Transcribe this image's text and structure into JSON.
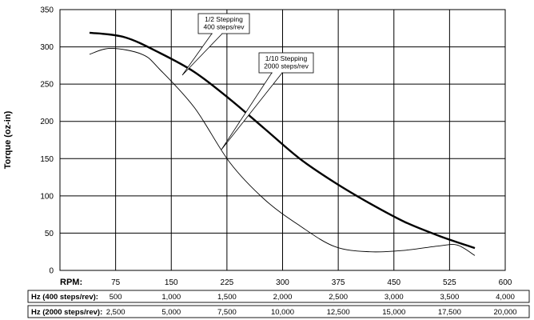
{
  "chart_data": {
    "type": "line",
    "title": "",
    "ylabel": "Torque (oz-in)",
    "xlabel": "RPM:",
    "ylim": [
      0,
      350
    ],
    "y_ticks": [
      "0",
      "50",
      "100",
      "150",
      "200",
      "250",
      "300",
      "350"
    ],
    "xlim": [
      0,
      600
    ],
    "x_ticks": [
      "75",
      "150",
      "225",
      "300",
      "375",
      "450",
      "525",
      "600"
    ],
    "grid": true,
    "series": [
      {
        "name": "1/2 Stepping 400 steps/rev",
        "color": "#000000",
        "weight": "bold",
        "x": [
          0,
          50,
          100,
          150,
          200,
          250,
          300,
          350,
          400,
          450,
          500,
          550
        ],
        "y": [
          319,
          313,
          292,
          266,
          230,
          190,
          150,
          118,
          90,
          65,
          46,
          30
        ]
      },
      {
        "name": "1/10 Stepping 2000 steps/rev",
        "color": "#000000",
        "weight": "thin",
        "x": [
          0,
          30,
          75,
          100,
          150,
          200,
          250,
          300,
          350,
          400,
          450,
          500,
          525,
          550
        ],
        "y": [
          290,
          298,
          290,
          270,
          218,
          145,
          95,
          60,
          32,
          25,
          27,
          33,
          34,
          20
        ]
      }
    ],
    "annotations": [
      {
        "lines": [
          "1/2 Stepping",
          "400 steps/rev"
        ]
      },
      {
        "lines": [
          "1/10 Stepping",
          "2000 steps/rev"
        ]
      }
    ],
    "table_rows": [
      {
        "label": "Hz (400 steps/rev):",
        "values": [
          "500",
          "1,000",
          "1,500",
          "2,000",
          "2,500",
          "3,000",
          "3,500",
          "4,000"
        ]
      },
      {
        "label": "Hz (2000 steps/rev):",
        "values": [
          "2,500",
          "5,000",
          "7,500",
          "10,000",
          "12,500",
          "15,000",
          "17,500",
          "20,000"
        ]
      }
    ]
  }
}
